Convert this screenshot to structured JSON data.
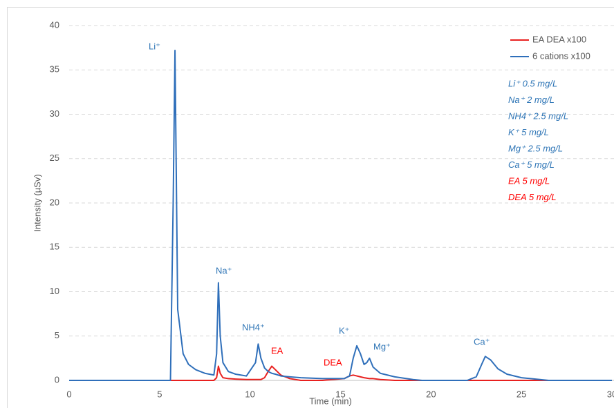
{
  "chart_data": {
    "type": "line",
    "xlabel": "Time (min)",
    "ylabel": "Intensity (µSv)",
    "x": [
      0,
      5,
      5.6,
      5.75,
      5.85,
      6.0,
      6.3,
      6.6,
      7.0,
      7.5,
      8.0,
      8.15,
      8.25,
      8.35,
      8.5,
      8.8,
      9.2,
      9.8,
      10.3,
      10.45,
      10.6,
      10.8,
      11.0,
      11.2,
      11.4,
      11.7,
      12.2,
      12.8,
      14,
      15.2,
      15.5,
      15.7,
      15.9,
      16.1,
      16.3,
      16.45,
      16.6,
      16.8,
      17.2,
      18,
      19,
      19.5,
      22,
      22.5,
      22.8,
      23.0,
      23.3,
      23.7,
      24.2,
      25,
      26.5,
      30
    ],
    "series": [
      {
        "name": "EA DEA x100",
        "color": "#e8201f",
        "values": [
          0,
          0,
          0,
          0,
          0,
          0,
          0,
          0,
          0,
          0,
          0,
          0.3,
          1.6,
          0.8,
          0.3,
          0.2,
          0.15,
          0.1,
          0.1,
          0.1,
          0.1,
          0.3,
          1.0,
          1.6,
          1.2,
          0.6,
          0.2,
          0,
          0,
          0.2,
          0.5,
          0.6,
          0.5,
          0.4,
          0.3,
          0.25,
          0.2,
          0.2,
          0.1,
          0,
          0,
          0,
          0,
          0,
          0,
          0,
          0,
          0,
          0,
          0,
          0,
          0
        ]
      },
      {
        "name": "6 cations x100",
        "color": "#2f6fba",
        "values": [
          0,
          0,
          0,
          20,
          37.2,
          8,
          3,
          1.8,
          1.2,
          0.8,
          0.6,
          3,
          11,
          5,
          2,
          1,
          0.7,
          0.5,
          2,
          4.1,
          2.5,
          1.4,
          1.0,
          0.8,
          0.7,
          0.5,
          0.4,
          0.3,
          0.2,
          0.2,
          0.5,
          2.5,
          3.9,
          3,
          1.8,
          2,
          2.5,
          1.5,
          0.8,
          0.4,
          0.1,
          0,
          0,
          0.4,
          1.8,
          2.7,
          2.3,
          1.3,
          0.7,
          0.3,
          0,
          0
        ]
      }
    ],
    "xlim": [
      0,
      30
    ],
    "xticks": [
      0,
      5,
      10,
      15,
      20,
      25,
      30
    ],
    "ylim": [
      0,
      40
    ],
    "yticks": [
      0,
      5,
      10,
      15,
      20,
      25,
      30,
      35,
      40
    ],
    "grid": true,
    "legend": "upper right",
    "annotations": [
      {
        "text": "Li⁺",
        "color": "#2e75b6"
      },
      {
        "text": "Na⁺",
        "color": "#2e75b6"
      },
      {
        "text": "NH4⁺",
        "color": "#2e75b6"
      },
      {
        "text": "EA",
        "color": "#ff0000"
      },
      {
        "text": "K⁺",
        "color": "#2e75b6"
      },
      {
        "text": "DEA",
        "color": "#ff0000"
      },
      {
        "text": "Mg⁺",
        "color": "#2e75b6"
      },
      {
        "text": "Ca⁺",
        "color": "#2e75b6"
      }
    ],
    "notes": [
      {
        "text": "Li⁺ 0.5 mg/L",
        "color": "#2e75b6"
      },
      {
        "text": "Na⁺ 2 mg/L",
        "color": "#2e75b6"
      },
      {
        "text": "NH4⁺ 2.5 mg/L",
        "color": "#2e75b6"
      },
      {
        "text": "K⁺ 5 mg/L",
        "color": "#2e75b6"
      },
      {
        "text": "Mg⁺ 2.5 mg/L",
        "color": "#2e75b6"
      },
      {
        "text": "Ca⁺ 5 mg/L",
        "color": "#2e75b6"
      },
      {
        "text": "EA 5 mg/L",
        "color": "#ff0000"
      },
      {
        "text": "DEA 5 mg/L",
        "color": "#ff0000"
      }
    ]
  }
}
